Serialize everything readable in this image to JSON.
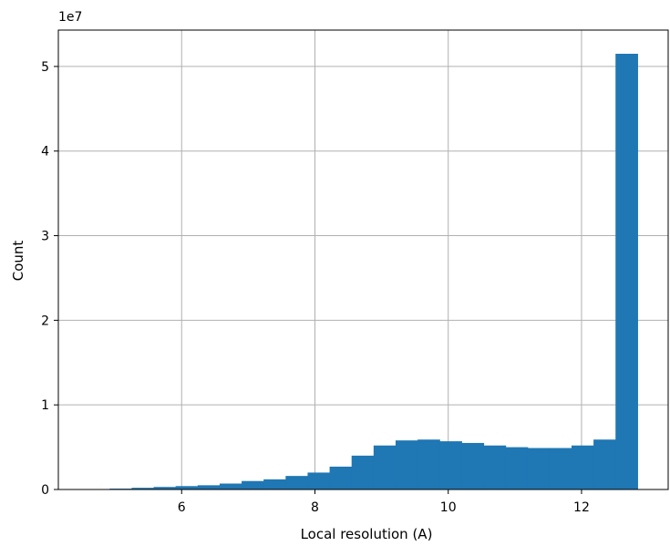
{
  "chart_data": {
    "type": "bar",
    "title": "",
    "xlabel": "Local resolution (A)",
    "ylabel": "Count",
    "y_offset_label": "1e7",
    "y_multiplier": 10000000,
    "xlim": [
      4.15,
      13.3
    ],
    "ylim": [
      0,
      5.43
    ],
    "xticks": [
      6,
      8,
      10,
      12
    ],
    "yticks": [
      0,
      1,
      2,
      3,
      4,
      5
    ],
    "grid": true,
    "bar_color": "#1f77b4",
    "bin_edges": [
      4.92,
      5.25,
      5.58,
      5.91,
      6.24,
      6.57,
      6.9,
      7.23,
      7.56,
      7.89,
      8.22,
      8.55,
      8.88,
      9.21,
      9.54,
      9.87,
      10.2,
      10.53,
      10.86,
      11.19,
      11.52,
      11.85,
      12.18,
      12.51,
      12.84
    ],
    "values": [
      0.01,
      0.02,
      0.03,
      0.04,
      0.05,
      0.07,
      0.1,
      0.12,
      0.16,
      0.2,
      0.27,
      0.4,
      0.52,
      0.58,
      0.59,
      0.57,
      0.55,
      0.52,
      0.5,
      0.49,
      0.49,
      0.52,
      0.59,
      5.15
    ]
  }
}
